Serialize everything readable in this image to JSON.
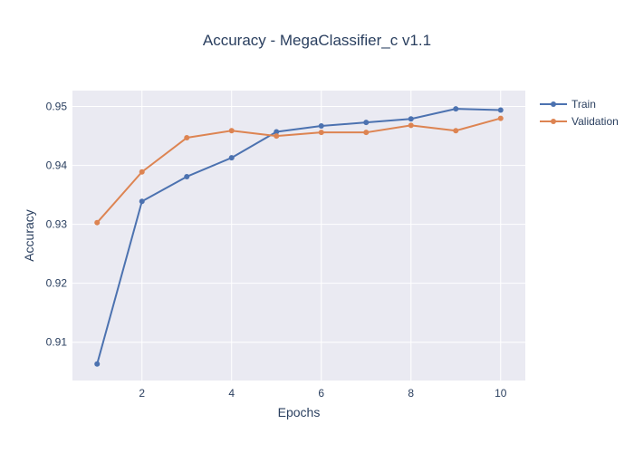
{
  "chart_data": {
    "type": "line",
    "title": "Accuracy - MegaClassifier_c v1.1",
    "xlabel": "Epochs",
    "ylabel": "Accuracy",
    "x": [
      1,
      2,
      3,
      4,
      5,
      6,
      7,
      8,
      9,
      10
    ],
    "xlim": [
      0.45,
      10.55
    ],
    "ylim": [
      0.9035,
      0.9527
    ],
    "x_ticks": [
      2,
      4,
      6,
      8,
      10
    ],
    "y_ticks": [
      0.91,
      0.92,
      0.93,
      0.94,
      0.95
    ],
    "grid": true,
    "legend_position": "top-right",
    "series": [
      {
        "name": "Train",
        "color": "#4c72b0",
        "values": [
          0.9063,
          0.9339,
          0.9381,
          0.9413,
          0.9457,
          0.9467,
          0.9473,
          0.9479,
          0.9496,
          0.9494
        ]
      },
      {
        "name": "Validation",
        "color": "#dd8452",
        "values": [
          0.9303,
          0.9389,
          0.9447,
          0.9459,
          0.945,
          0.9456,
          0.9456,
          0.9468,
          0.9459,
          0.948
        ]
      }
    ],
    "plot_background": "#eaeaf2"
  }
}
